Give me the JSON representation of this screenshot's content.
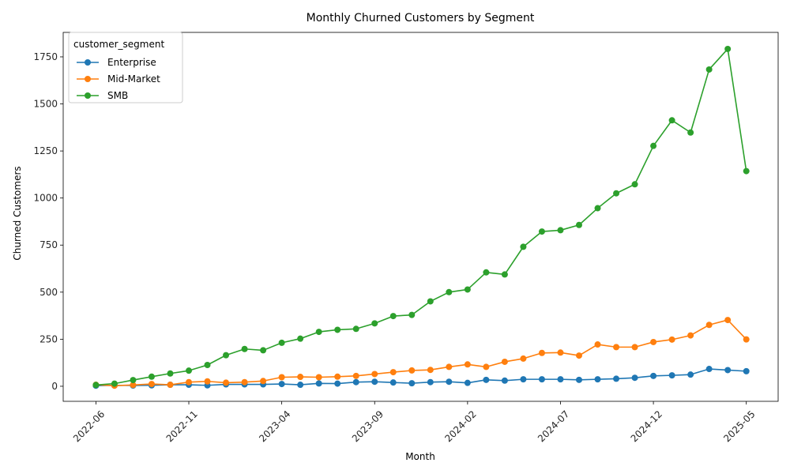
{
  "chart_data": {
    "type": "line",
    "title": "Monthly Churned Customers by Segment",
    "xlabel": "Month",
    "ylabel": "Churned Customers",
    "legend_title": "customer_segment",
    "legend_position": "top-left",
    "grid": false,
    "ylim": [
      -80,
      1880
    ],
    "yticks": [
      0,
      250,
      500,
      750,
      1000,
      1250,
      1500,
      1750
    ],
    "xtick_labels": [
      "2022-06",
      "2022-11",
      "2023-04",
      "2023-09",
      "2024-02",
      "2024-07",
      "2024-12",
      "2025-05"
    ],
    "x": [
      "2022-06",
      "2022-07",
      "2022-08",
      "2022-09",
      "2022-10",
      "2022-11",
      "2022-12",
      "2023-01",
      "2023-02",
      "2023-03",
      "2023-04",
      "2023-05",
      "2023-06",
      "2023-07",
      "2023-08",
      "2023-09",
      "2023-10",
      "2023-11",
      "2023-12",
      "2024-01",
      "2024-02",
      "2024-03",
      "2024-04",
      "2024-05",
      "2024-06",
      "2024-07",
      "2024-08",
      "2024-09",
      "2024-10",
      "2024-11",
      "2024-12",
      "2025-01",
      "2025-02",
      "2025-03",
      "2025-04",
      "2025-05"
    ],
    "series": [
      {
        "name": "Enterprise",
        "color": "#1f77b4",
        "values": [
          3,
          5,
          4,
          5,
          8,
          8,
          5,
          10,
          10,
          10,
          12,
          8,
          15,
          14,
          22,
          24,
          20,
          16,
          22,
          24,
          18,
          34,
          30,
          37,
          37,
          37,
          34,
          37,
          40,
          45,
          55,
          58,
          62,
          92,
          86,
          80
        ]
      },
      {
        "name": "Mid-Market",
        "color": "#ff7f0e",
        "values": [
          8,
          3,
          7,
          12,
          8,
          22,
          26,
          19,
          22,
          28,
          48,
          50,
          48,
          51,
          55,
          65,
          75,
          84,
          87,
          103,
          116,
          103,
          130,
          147,
          177,
          179,
          163,
          222,
          208,
          208,
          235,
          248,
          270,
          326,
          352,
          249
        ]
      },
      {
        "name": "SMB",
        "color": "#2ca02c",
        "values": [
          7,
          14,
          33,
          51,
          68,
          83,
          113,
          165,
          198,
          191,
          231,
          253,
          289,
          300,
          305,
          334,
          373,
          379,
          451,
          500,
          514,
          605,
          594,
          741,
          822,
          829,
          857,
          946,
          1025,
          1073,
          1277,
          1413,
          1348,
          1683,
          1792,
          1143
        ]
      }
    ]
  }
}
